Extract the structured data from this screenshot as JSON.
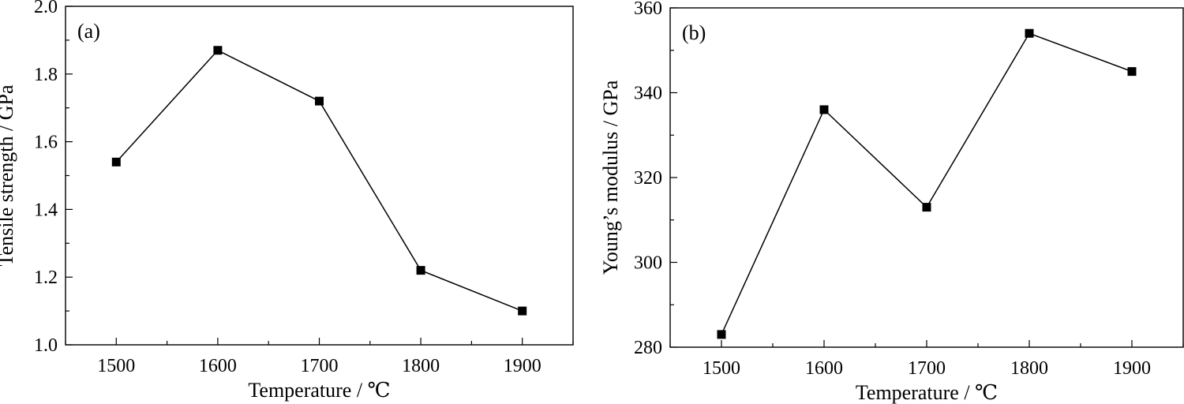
{
  "chart_data": [
    {
      "type": "line",
      "panel_label": "(a)",
      "xlabel": "Temperature / ℃",
      "ylabel": "Tensile strength / GPa",
      "x": [
        1500,
        1600,
        1700,
        1800,
        1900
      ],
      "series": [
        {
          "values": [
            1.54,
            1.87,
            1.72,
            1.22,
            1.1
          ]
        }
      ],
      "xlim": [
        1450,
        1950
      ],
      "ylim": [
        1.0,
        2.0
      ],
      "xticks": [
        1500,
        1600,
        1700,
        1800,
        1900
      ],
      "yticks": [
        1.0,
        1.2,
        1.4,
        1.6,
        1.8,
        2.0
      ],
      "ytick_labels": [
        "1.0",
        "1.2",
        "1.4",
        "1.6",
        "1.8",
        "2.0"
      ],
      "marker": "square",
      "grid": false,
      "legend": "none"
    },
    {
      "type": "line",
      "panel_label": "(b)",
      "xlabel": "Temperature / ℃",
      "ylabel": "Young’s modulus / GPa",
      "x": [
        1500,
        1600,
        1700,
        1800,
        1900
      ],
      "series": [
        {
          "values": [
            283,
            336,
            313,
            354,
            345
          ]
        }
      ],
      "xlim": [
        1450,
        1950
      ],
      "ylim": [
        280,
        360
      ],
      "xticks": [
        1500,
        1600,
        1700,
        1800,
        1900
      ],
      "yticks": [
        280,
        300,
        320,
        340,
        360
      ],
      "ytick_labels": [
        "280",
        "300",
        "320",
        "340",
        "360"
      ],
      "marker": "square",
      "grid": false,
      "legend": "none"
    }
  ],
  "colors": {
    "line": "#000000",
    "marker": "#000000",
    "axes": "#000000",
    "background": "#ffffff"
  }
}
